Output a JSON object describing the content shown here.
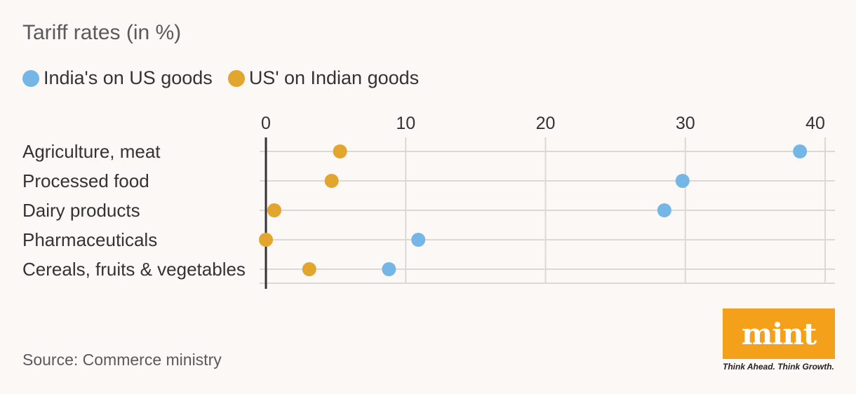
{
  "chart_data": {
    "type": "scatter",
    "title": "Tariff rates (in %)",
    "categories": [
      "Agriculture, meat",
      "Processed food",
      "Dairy products",
      "Pharmaceuticals",
      "Cereals, fruits & vegetables"
    ],
    "series": [
      {
        "name": "India's on US goods",
        "color": "#74b6e6",
        "values": [
          38.2,
          29.8,
          28.5,
          10.9,
          8.8
        ]
      },
      {
        "name": "US' on Indian goods",
        "color": "#e2a52d",
        "values": [
          5.3,
          4.7,
          0.6,
          0.0,
          3.1
        ]
      }
    ],
    "xlim": [
      0,
      40
    ],
    "xticks": [
      0,
      10,
      20,
      30,
      40
    ],
    "grid": true,
    "legend_position": "top-left",
    "source": "Source: Commerce ministry"
  },
  "branding": {
    "logo_text": "mint",
    "tagline": "Think Ahead. Think Growth.",
    "logo_color": "#f5a01a"
  }
}
